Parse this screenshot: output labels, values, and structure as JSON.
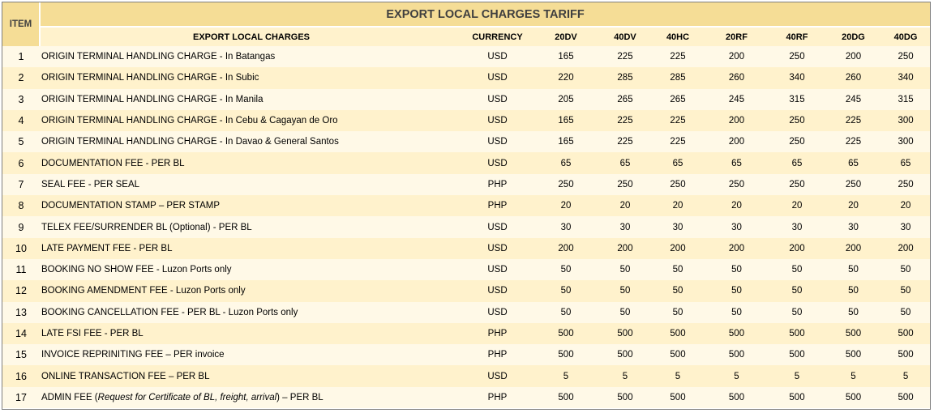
{
  "title": "EXPORT LOCAL CHARGES TARIFF",
  "item_header": "ITEM",
  "columns": [
    "EXPORT LOCAL CHARGES",
    "CURRENCY",
    "20DV",
    "40DV",
    "40HC",
    "20RF",
    "40RF",
    "20DG",
    "40DG"
  ],
  "rows": [
    {
      "item": "1",
      "desc": "ORIGIN TERMINAL HANDLING CHARGE - In Batangas",
      "currency": "USD",
      "values": [
        "165",
        "225",
        "225",
        "200",
        "250",
        "200",
        "250"
      ]
    },
    {
      "item": "2",
      "desc": "ORIGIN TERMINAL HANDLING CHARGE - In Subic",
      "currency": "USD",
      "values": [
        "220",
        "285",
        "285",
        "260",
        "340",
        "260",
        "340"
      ]
    },
    {
      "item": "3",
      "desc": "ORIGIN TERMINAL HANDLING CHARGE - In Manila",
      "currency": "USD",
      "values": [
        "205",
        "265",
        "265",
        "245",
        "315",
        "245",
        "315"
      ]
    },
    {
      "item": "4",
      "desc": "ORIGIN TERMINAL HANDLING CHARGE - In Cebu & Cagayan de Oro",
      "currency": "USD",
      "values": [
        "165",
        "225",
        "225",
        "200",
        "250",
        "225",
        "300"
      ]
    },
    {
      "item": "5",
      "desc": "ORIGIN TERMINAL HANDLING CHARGE - In Davao & General  Santos",
      "currency": "USD",
      "values": [
        "165",
        "225",
        "225",
        "200",
        "250",
        "225",
        "300"
      ]
    },
    {
      "item": "6",
      "desc": "DOCUMENTATION FEE - PER BL",
      "currency": "USD",
      "values": [
        "65",
        "65",
        "65",
        "65",
        "65",
        "65",
        "65"
      ]
    },
    {
      "item": "7",
      "desc": "SEAL FEE - PER SEAL",
      "currency": "PHP",
      "values": [
        "250",
        "250",
        "250",
        "250",
        "250",
        "250",
        "250"
      ]
    },
    {
      "item": "8",
      "desc": "DOCUMENTATION STAMP – PER STAMP",
      "currency": "PHP",
      "values": [
        "20",
        "20",
        "20",
        "20",
        "20",
        "20",
        "20"
      ]
    },
    {
      "item": "9",
      "desc": "TELEX FEE/SURRENDER BL (Optional) - PER BL",
      "currency": "USD",
      "values": [
        "30",
        "30",
        "30",
        "30",
        "30",
        "30",
        "30"
      ]
    },
    {
      "item": "10",
      "desc": "LATE PAYMENT FEE - PER BL",
      "currency": "USD",
      "values": [
        "200",
        "200",
        "200",
        "200",
        "200",
        "200",
        "200"
      ]
    },
    {
      "item": "11",
      "desc": "BOOKING NO SHOW FEE - Luzon Ports only",
      "currency": "USD",
      "values": [
        "50",
        "50",
        "50",
        "50",
        "50",
        "50",
        "50"
      ]
    },
    {
      "item": "12",
      "desc": "BOOKING AMENDMENT FEE - Luzon Ports only",
      "currency": "USD",
      "values": [
        "50",
        "50",
        "50",
        "50",
        "50",
        "50",
        "50"
      ]
    },
    {
      "item": "13",
      "desc": "BOOKING CANCELLATION FEE - PER BL - Luzon Ports only",
      "currency": "USD",
      "values": [
        "50",
        "50",
        "50",
        "50",
        "50",
        "50",
        "50"
      ]
    },
    {
      "item": "14",
      "desc": "LATE FSI FEE - PER BL",
      "currency": "PHP",
      "values": [
        "500",
        "500",
        "500",
        "500",
        "500",
        "500",
        "500"
      ]
    },
    {
      "item": "15",
      "desc": "INVOICE REPRINITING FEE – PER invoice",
      "currency": "PHP",
      "values": [
        "500",
        "500",
        "500",
        "500",
        "500",
        "500",
        "500"
      ]
    },
    {
      "item": "16",
      "desc": "ONLINE TRANSACTION FEE – PER BL",
      "currency": "USD",
      "values": [
        "5",
        "5",
        "5",
        "5",
        "5",
        "5",
        "5"
      ]
    },
    {
      "item": "17",
      "desc_pre": "ADMIN FEE (",
      "desc_italic": "Request for Certificate of BL, freight, arrival",
      "desc_post": ") – PER BL",
      "currency": "PHP",
      "values": [
        "500",
        "500",
        "500",
        "500",
        "500",
        "500",
        "500"
      ]
    }
  ],
  "colors": {
    "header_gold": "#f5dd96",
    "band_light": "#fff9e7",
    "band_dark": "#fff2cc",
    "border": "#7f7f7f"
  }
}
